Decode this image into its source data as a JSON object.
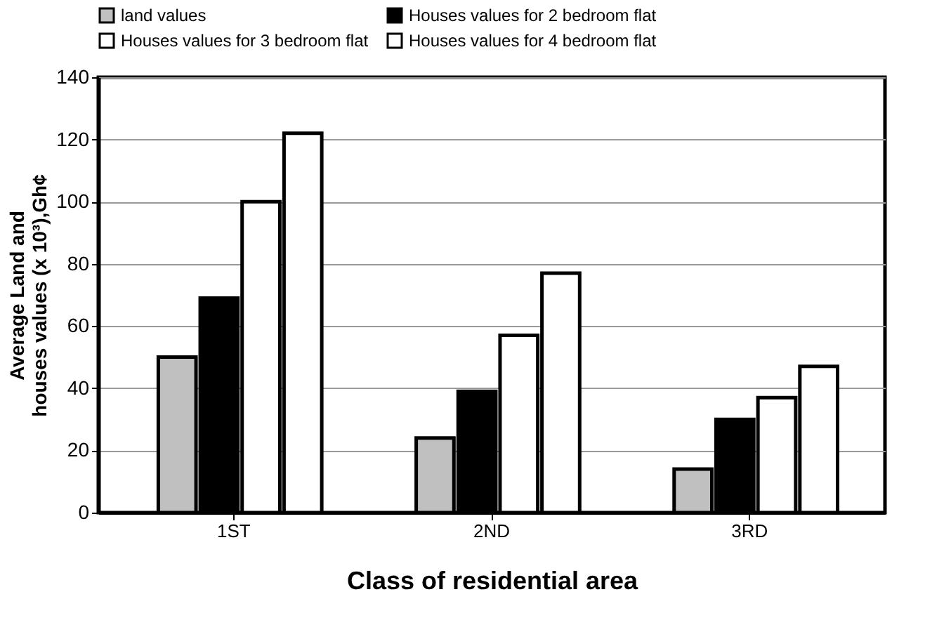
{
  "chart_data": {
    "type": "bar",
    "xlabel": "Class of residential area",
    "ylabel": "Average Land and\nhouses values (x 10³),Gh¢",
    "categories": [
      "1ST",
      "2ND",
      "3RD"
    ],
    "series": [
      {
        "name": "land values",
        "color": "#c0c0c0",
        "values": [
          50,
          24,
          14
        ]
      },
      {
        "name": "Houses values for 2 bedroom flat",
        "color": "#000000",
        "values": [
          69,
          39,
          30
        ]
      },
      {
        "name": "Houses values for 3 bedroom flat",
        "color": "#ffffff",
        "values": [
          100,
          57,
          37
        ]
      },
      {
        "name": "Houses values for 4 bedroom flat",
        "color": "#ffffff",
        "values": [
          122,
          77,
          47
        ]
      }
    ],
    "ylim": [
      0,
      140
    ],
    "yticks": [
      0,
      20,
      40,
      60,
      80,
      100,
      120,
      140
    ],
    "grid": "y",
    "legend": "top"
  }
}
